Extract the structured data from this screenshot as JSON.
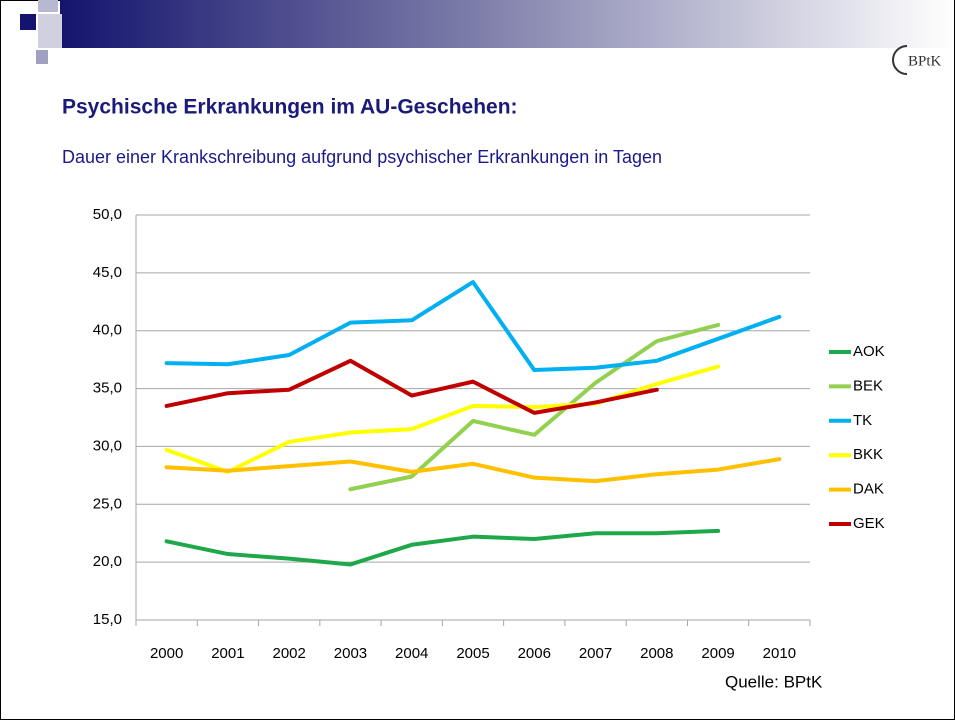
{
  "logo": "BPtK",
  "chart_data": {
    "type": "line",
    "title": "Psychische Erkrankungen im AU-Geschehen:",
    "subtitle": "Dauer einer Krankschreibung aufgrund psychischer Erkrankungen in Tagen",
    "source": "Quelle: BPtK",
    "categories": [
      "2000",
      "2001",
      "2002",
      "2003",
      "2004",
      "2005",
      "2006",
      "2007",
      "2008",
      "2009",
      "2010"
    ],
    "ylim": [
      15,
      50
    ],
    "yticks": [
      {
        "value": 15,
        "label": "15,0"
      },
      {
        "value": 20,
        "label": "20,0"
      },
      {
        "value": 25,
        "label": "25,0"
      },
      {
        "value": 30,
        "label": "30,0"
      },
      {
        "value": 35,
        "label": "35,0"
      },
      {
        "value": 40,
        "label": "40,0"
      },
      {
        "value": 45,
        "label": "45,0"
      },
      {
        "value": 50,
        "label": "50,0"
      }
    ],
    "grid": true,
    "legend": "right",
    "series": [
      {
        "name": "AOK",
        "color": "#1ea84a",
        "values": [
          21.8,
          20.7,
          20.3,
          19.8,
          21.5,
          22.2,
          22.0,
          22.5,
          22.5,
          22.7,
          null
        ]
      },
      {
        "name": "BEK",
        "color": "#92d050",
        "values": [
          null,
          null,
          null,
          26.3,
          27.4,
          32.2,
          31.0,
          35.5,
          39.1,
          40.5,
          null
        ]
      },
      {
        "name": "TK",
        "color": "#00b0f0",
        "values": [
          37.2,
          37.1,
          37.9,
          40.7,
          40.9,
          44.2,
          36.6,
          36.8,
          37.4,
          39.3,
          41.2
        ]
      },
      {
        "name": "BKK",
        "color": "#ffff00",
        "values": [
          29.7,
          27.8,
          30.4,
          31.2,
          31.5,
          33.5,
          33.4,
          33.7,
          35.4,
          36.9,
          null
        ]
      },
      {
        "name": "DAK",
        "color": "#ffc000",
        "values": [
          28.2,
          27.9,
          28.3,
          28.7,
          27.8,
          28.5,
          27.3,
          27.0,
          27.6,
          28.0,
          28.9
        ]
      },
      {
        "name": "GEK",
        "color": "#c00000",
        "values": [
          33.5,
          34.6,
          34.9,
          37.4,
          34.4,
          35.6,
          32.9,
          33.8,
          34.9,
          null,
          null
        ]
      }
    ]
  }
}
